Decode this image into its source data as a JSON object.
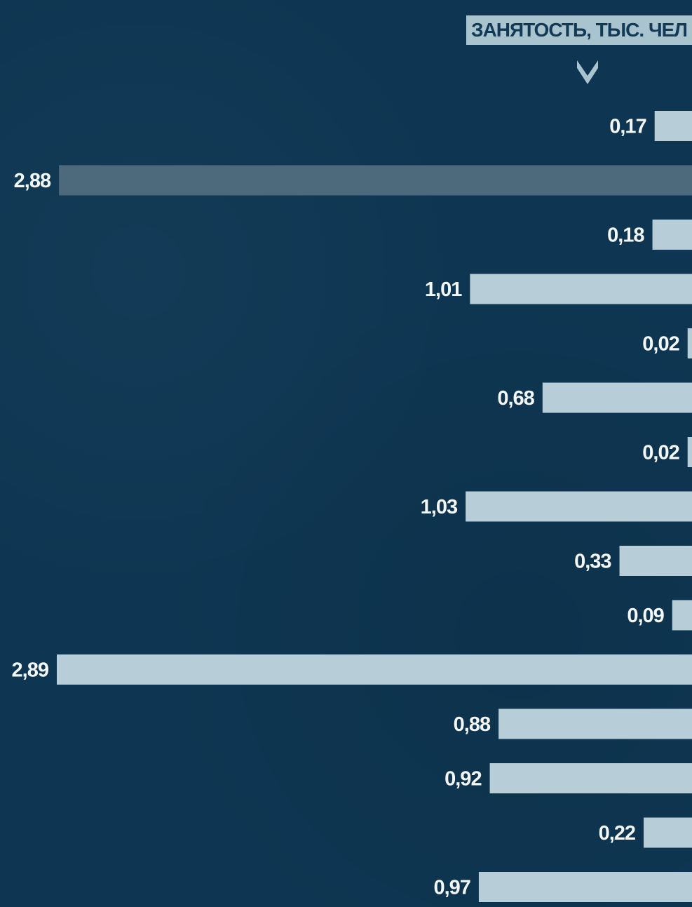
{
  "header": {
    "label": "ЗАНЯТОСТЬ, ТЫС. ЧЕЛ",
    "arrow_icon": "chevron-down-icon"
  },
  "colors": {
    "background": "#0e3652",
    "bar": "#b7ced8",
    "highlight_bar": "#4d6a7d",
    "header_bg": "#a9c4ce",
    "header_text": "#123955",
    "value_text": "#f3f7f8"
  },
  "chart_data": {
    "type": "bar",
    "orientation": "horizontal",
    "alignment": "right",
    "title": "",
    "xlabel": "ЗАНЯТОСТЬ, ТЫС. ЧЕЛ",
    "ylabel": "",
    "grid": false,
    "legend": "none",
    "categories": [
      "",
      "",
      "",
      "",
      "",
      "",
      "",
      "",
      "",
      "",
      "",
      "",
      "",
      "",
      ""
    ],
    "values": [
      0.17,
      2.88,
      0.18,
      1.01,
      0.02,
      0.68,
      0.02,
      1.03,
      0.33,
      0.09,
      2.89,
      0.88,
      0.92,
      0.22,
      0.97
    ],
    "labels": [
      "0,17",
      "2,88",
      "0,18",
      "1,01",
      "0,02",
      "0,68",
      "0,02",
      "1,03",
      "0,33",
      "0,09",
      "2,89",
      "0,88",
      "0,92",
      "0,22",
      "0,97"
    ],
    "highlight_index": 1,
    "xlim": [
      0,
      2.89
    ]
  }
}
